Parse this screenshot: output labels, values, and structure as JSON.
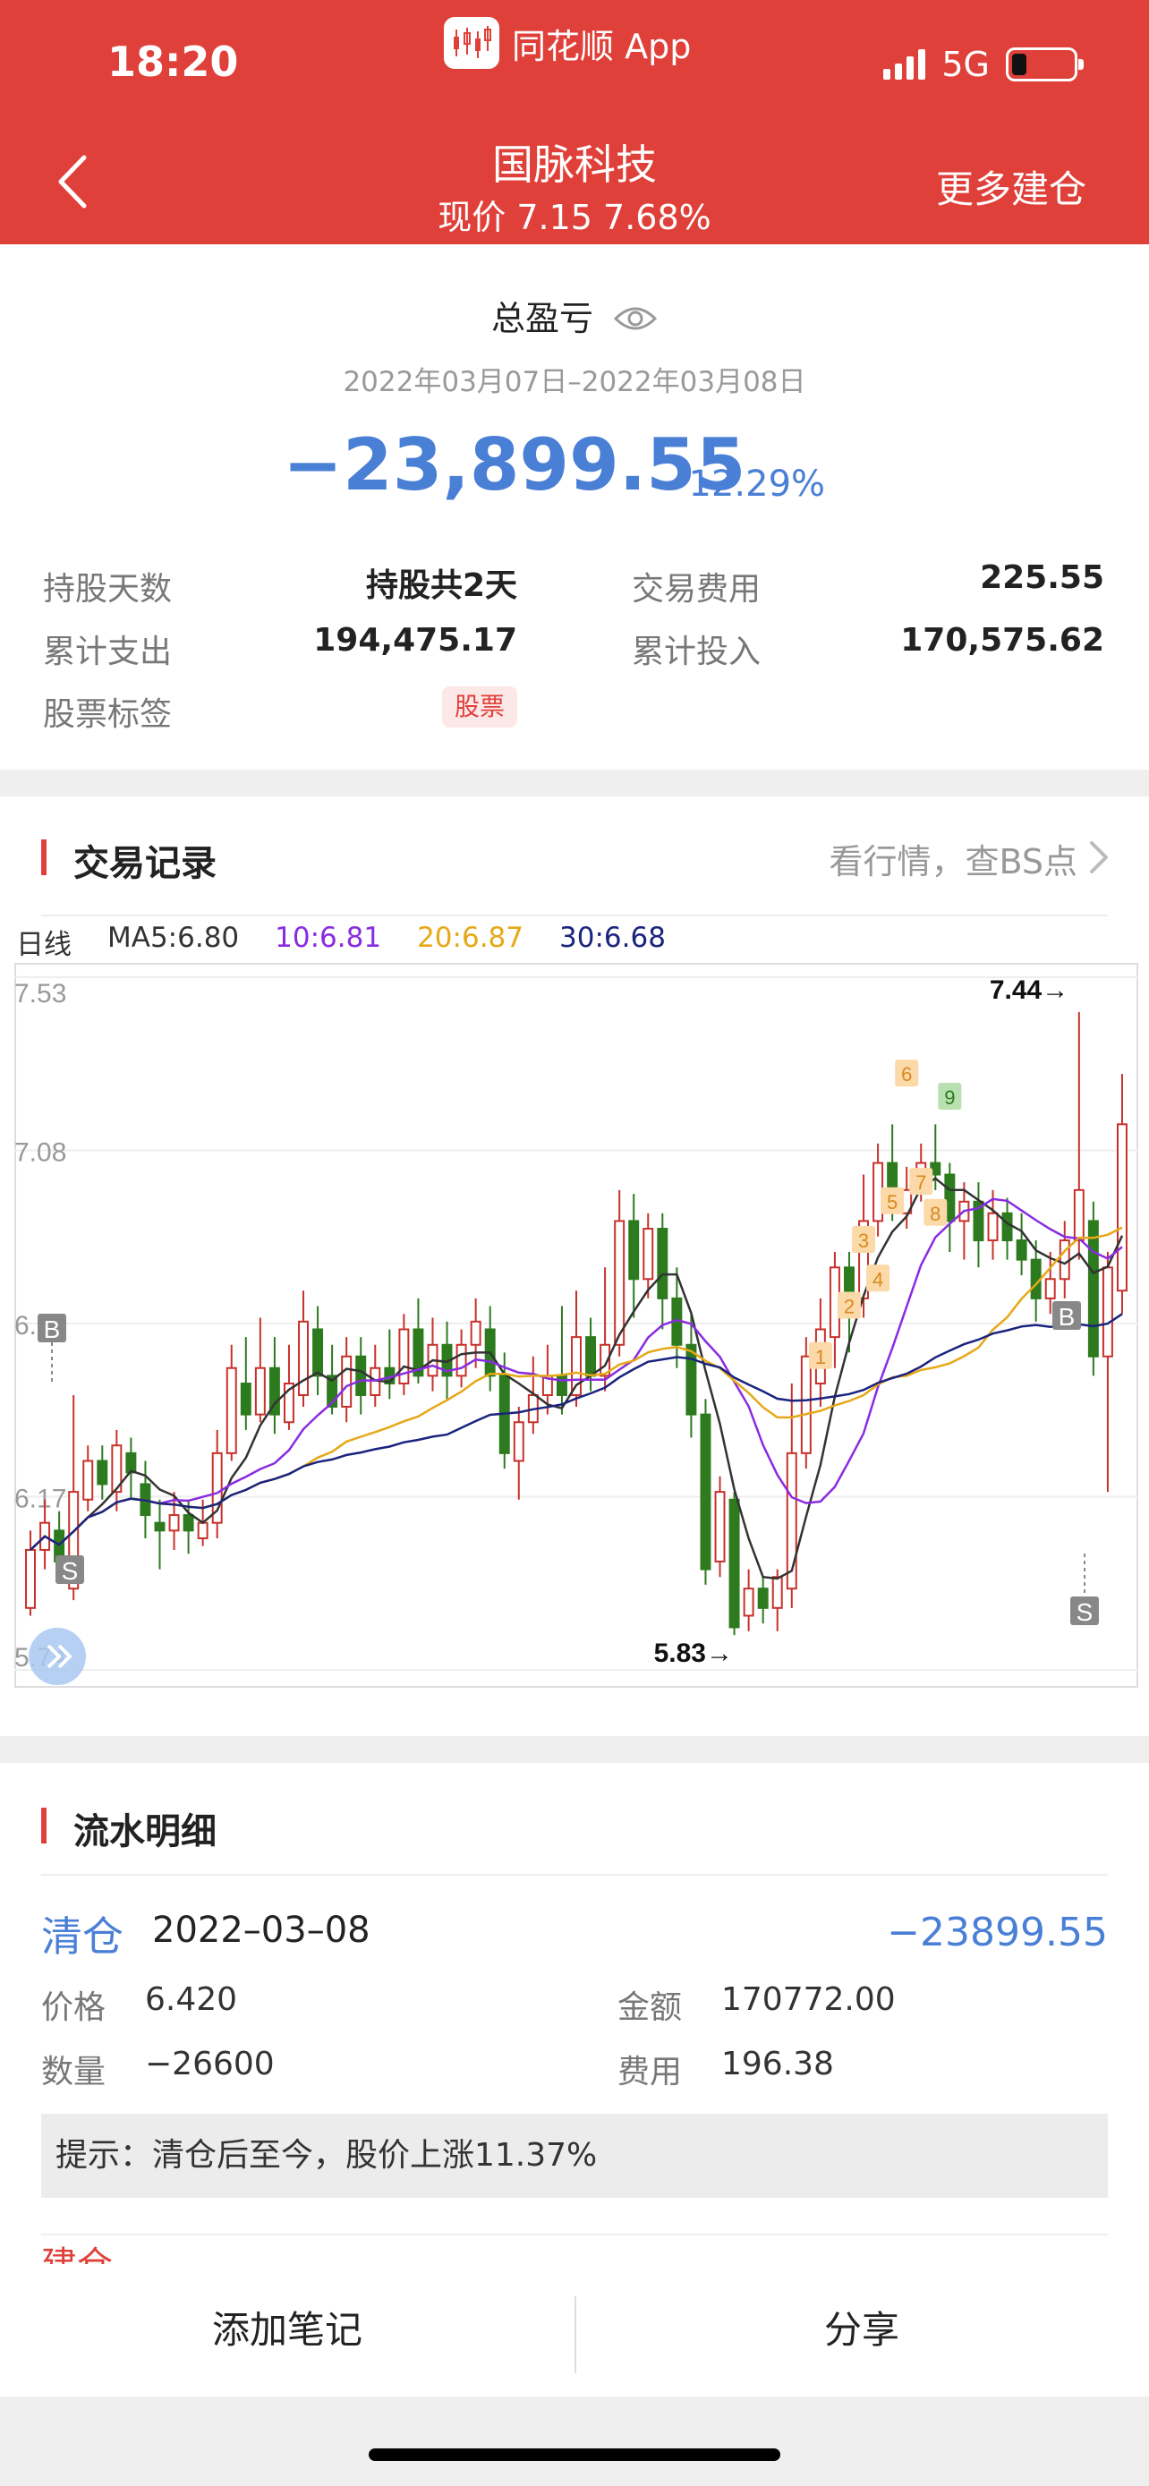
{
  "status": {
    "time": "18:20",
    "app_name": "同花顺 App",
    "network": "5G"
  },
  "header": {
    "stock_name": "国脉科技",
    "price_line": "现价 7.15 7.68%",
    "more_label": "更多建仓"
  },
  "summary": {
    "title": "总盈亏",
    "date_range": "2022年03月07日–2022年03月08日",
    "total_pl": "−23,899.55",
    "total_pl_pct": "−12.29%",
    "rows": [
      {
        "label": "持股天数",
        "value": "持股共2天"
      },
      {
        "label": "交易费用",
        "value": "225.55"
      },
      {
        "label": "累计支出",
        "value": "194,475.17"
      },
      {
        "label": "累计投入",
        "value": "170,575.62"
      },
      {
        "label": "股票标签",
        "value": "股票"
      }
    ]
  },
  "trade": {
    "title": "交易记录",
    "link": "看行情，查BS点",
    "period": "日线",
    "ma": [
      {
        "label": "MA5:6.80",
        "color": "#333333"
      },
      {
        "label": "10:6.81",
        "color": "#8a2be2"
      },
      {
        "label": "20:6.87",
        "color": "#e6a817"
      },
      {
        "label": "30:6.68",
        "color": "#1a237e"
      }
    ]
  },
  "chart_data": {
    "type": "candlestick",
    "y_ticks": [
      "7.53",
      "7.08",
      "6.6",
      "6.17",
      "5.74"
    ],
    "ylim": [
      5.74,
      7.53
    ],
    "high_label": "7.44→",
    "low_label": "5.83→",
    "buy_marker": "B",
    "sell_marker": "S",
    "num_markers": [
      "1",
      "2",
      "3",
      "4",
      "5",
      "6",
      "7",
      "8",
      "9"
    ],
    "candles": [
      [
        5.9,
        6.05,
        6.1,
        5.88
      ],
      [
        6.05,
        6.12,
        6.18,
        6.0
      ],
      [
        6.1,
        6.02,
        6.15,
        5.98
      ],
      [
        5.95,
        6.2,
        6.45,
        5.92
      ],
      [
        6.18,
        6.28,
        6.32,
        6.15
      ],
      [
        6.28,
        6.22,
        6.32,
        6.18
      ],
      [
        6.2,
        6.32,
        6.36,
        6.15
      ],
      [
        6.3,
        6.25,
        6.34,
        6.18
      ],
      [
        6.22,
        6.14,
        6.28,
        6.08
      ],
      [
        6.12,
        6.1,
        6.18,
        6.0
      ],
      [
        6.1,
        6.14,
        6.2,
        6.05
      ],
      [
        6.14,
        6.1,
        6.18,
        6.04
      ],
      [
        6.08,
        6.12,
        6.18,
        6.06
      ],
      [
        6.12,
        6.3,
        6.36,
        6.08
      ],
      [
        6.3,
        6.52,
        6.58,
        6.28
      ],
      [
        6.48,
        6.4,
        6.6,
        6.36
      ],
      [
        6.4,
        6.52,
        6.65,
        6.38
      ],
      [
        6.52,
        6.4,
        6.6,
        6.35
      ],
      [
        6.38,
        6.48,
        6.58,
        6.36
      ],
      [
        6.45,
        6.64,
        6.72,
        6.42
      ],
      [
        6.62,
        6.5,
        6.68,
        6.45
      ],
      [
        6.5,
        6.42,
        6.58,
        6.4
      ],
      [
        6.42,
        6.55,
        6.6,
        6.38
      ],
      [
        6.55,
        6.45,
        6.6,
        6.4
      ],
      [
        6.45,
        6.52,
        6.58,
        6.42
      ],
      [
        6.52,
        6.48,
        6.62,
        6.44
      ],
      [
        6.48,
        6.62,
        6.66,
        6.45
      ],
      [
        6.62,
        6.5,
        6.7,
        6.48
      ],
      [
        6.5,
        6.58,
        6.65,
        6.46
      ],
      [
        6.58,
        6.5,
        6.64,
        6.44
      ],
      [
        6.5,
        6.58,
        6.62,
        6.47
      ],
      [
        6.58,
        6.64,
        6.7,
        6.52
      ],
      [
        6.62,
        6.5,
        6.68,
        6.46
      ],
      [
        6.5,
        6.3,
        6.56,
        6.26
      ],
      [
        6.28,
        6.38,
        6.42,
        6.18
      ],
      [
        6.38,
        6.45,
        6.55,
        6.35
      ],
      [
        6.45,
        6.5,
        6.58,
        6.4
      ],
      [
        6.5,
        6.45,
        6.68,
        6.4
      ],
      [
        6.45,
        6.6,
        6.72,
        6.42
      ],
      [
        6.6,
        6.5,
        6.65,
        6.46
      ],
      [
        6.5,
        6.58,
        6.78,
        6.46
      ],
      [
        6.58,
        6.9,
        6.98,
        6.55
      ],
      [
        6.9,
        6.75,
        6.97,
        6.65
      ],
      [
        6.75,
        6.88,
        6.92,
        6.7
      ],
      [
        6.88,
        6.7,
        6.92,
        6.62
      ],
      [
        6.7,
        6.58,
        6.78,
        6.52
      ],
      [
        6.58,
        6.4,
        6.66,
        6.34
      ],
      [
        6.4,
        6.0,
        6.44,
        5.96
      ],
      [
        6.02,
        6.2,
        6.24,
        5.98
      ],
      [
        6.18,
        5.85,
        6.2,
        5.83
      ],
      [
        5.88,
        5.95,
        6.0,
        5.84
      ],
      [
        5.95,
        5.9,
        5.98,
        5.86
      ],
      [
        5.9,
        5.98,
        6.0,
        5.84
      ],
      [
        5.95,
        6.3,
        6.48,
        5.9
      ],
      [
        6.3,
        6.55,
        6.6,
        6.26
      ],
      [
        6.48,
        6.62,
        6.7,
        6.42
      ],
      [
        6.6,
        6.78,
        6.82,
        6.52
      ],
      [
        6.78,
        6.68,
        6.82,
        6.56
      ],
      [
        6.7,
        6.9,
        7.02,
        6.65
      ],
      [
        6.9,
        7.05,
        7.1,
        6.86
      ],
      [
        7.05,
        6.95,
        7.15,
        6.9
      ],
      [
        6.92,
        6.98,
        7.04,
        6.88
      ],
      [
        6.98,
        7.05,
        7.1,
        6.95
      ],
      [
        7.05,
        7.02,
        7.15,
        6.98
      ],
      [
        7.02,
        6.9,
        7.05,
        6.82
      ],
      [
        6.9,
        6.95,
        7.0,
        6.8
      ],
      [
        6.95,
        6.85,
        7.0,
        6.78
      ],
      [
        6.85,
        6.92,
        6.98,
        6.8
      ],
      [
        6.92,
        6.85,
        6.96,
        6.8
      ],
      [
        6.85,
        6.8,
        6.92,
        6.76
      ],
      [
        6.8,
        6.7,
        6.85,
        6.64
      ],
      [
        6.7,
        6.75,
        6.82,
        6.66
      ],
      [
        6.75,
        6.85,
        6.9,
        6.7
      ],
      [
        6.85,
        6.98,
        7.44,
        6.8
      ],
      [
        6.9,
        6.55,
        6.95,
        6.5
      ],
      [
        6.55,
        6.78,
        6.82,
        6.2
      ],
      [
        6.72,
        7.15,
        7.28,
        6.66
      ]
    ]
  },
  "flow": {
    "title": "流水明细",
    "type": "清仓",
    "date": "2022–03–08",
    "amount": "−23899.55",
    "price_label": "价格",
    "price": "6.420",
    "sum_label": "金额",
    "sum": "170772.00",
    "qty_label": "数量",
    "qty": "−26600",
    "fee_label": "费用",
    "fee": "196.38",
    "tip": "提示：清仓后至今，股价上涨11.37%",
    "next_type": "建仓"
  },
  "bottom": {
    "add_note": "添加笔记",
    "share": "分享"
  },
  "colors": {
    "up": "#c8312b",
    "down": "#2d7a1f",
    "accent": "#e0403a",
    "blue": "#4a7fd6"
  }
}
